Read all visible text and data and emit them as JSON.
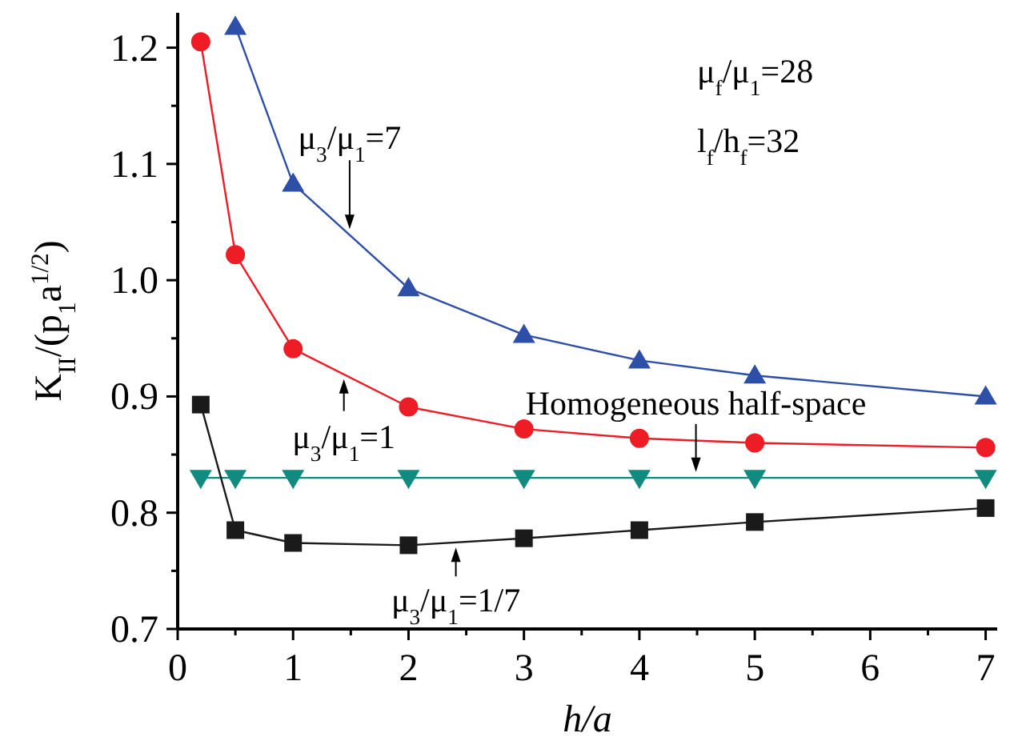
{
  "chart_data": {
    "type": "line",
    "xlabel": "h/a",
    "ylabel": "K$_{II}$/(p$_{1}$a$^{1/2}$)",
    "xlim": [
      0,
      7.1
    ],
    "ylim": [
      0.7,
      1.23
    ],
    "xticks": [
      0,
      {
        "value": 0.5,
        "label": null
      },
      1,
      {
        "value": 1.5,
        "label": null
      },
      2,
      {
        "value": 2.5,
        "label": null
      },
      3,
      {
        "value": 3.5,
        "label": null
      },
      4,
      {
        "value": 4.5,
        "label": null
      },
      5,
      {
        "value": 5.5,
        "label": null
      },
      6,
      {
        "value": 6.5,
        "label": null
      },
      7
    ],
    "yticks": [
      {
        "value": 0.7,
        "label": "0.7"
      },
      {
        "value": 0.75,
        "label": null
      },
      {
        "value": 0.8,
        "label": "0.8"
      },
      {
        "value": 0.85,
        "label": null
      },
      {
        "value": 0.9,
        "label": "0.9"
      },
      {
        "value": 0.95,
        "label": null
      },
      {
        "value": 1.0,
        "label": "1.0"
      },
      {
        "value": 1.05,
        "label": null
      },
      {
        "value": 1.1,
        "label": "1.1"
      },
      {
        "value": 1.15,
        "label": null
      },
      {
        "value": 1.2,
        "label": "1.2"
      }
    ],
    "grid": false,
    "series": [
      {
        "color": "#2e4fa8",
        "marker": "triangle",
        "x": [
          0.5,
          1,
          2,
          3,
          4,
          5,
          7
        ],
        "values": [
          1.218,
          1.083,
          0.993,
          0.953,
          0.931,
          0.918,
          0.9
        ]
      },
      {
        "color": "#ee1c25",
        "marker": "circle",
        "x": [
          0.2,
          0.5,
          1,
          2,
          3,
          4,
          5,
          7
        ],
        "values": [
          1.205,
          1.022,
          0.941,
          0.891,
          0.872,
          0.864,
          0.86,
          0.856
        ]
      },
      {
        "color": "#118a80",
        "marker": "triangle-down",
        "x": [
          0.2,
          0.5,
          1,
          2,
          3,
          4,
          5,
          7
        ],
        "values": [
          0.83,
          0.83,
          0.83,
          0.83,
          0.83,
          0.83,
          0.83,
          0.83
        ]
      },
      {
        "color": "#1a1a1a",
        "marker": "square",
        "x": [
          0.2,
          0.5,
          1,
          2,
          3,
          4,
          5,
          7
        ],
        "values": [
          0.893,
          0.785,
          0.774,
          0.772,
          0.778,
          0.785,
          0.792,
          0.804
        ]
      }
    ],
    "annotations": [
      {
        "text": "μ$_{3}$/μ$_{1}$=7",
        "x": 1.49,
        "y": 1.044
      },
      {
        "text": "μ$_{3}$/μ$_{1}$=1",
        "x": 1.44,
        "y": 0.915
      },
      {
        "text": "μ$_{3}$/μ$_{1}$=1/7",
        "x": 2.41,
        "y": 0.77
      },
      {
        "text": "Homogeneous half-space",
        "x": 4.49,
        "y": 0.835
      },
      "μ$_{f}$/μ$_{1}$=28",
      "l$_{f}$/h$_{f}$=32"
    ]
  }
}
